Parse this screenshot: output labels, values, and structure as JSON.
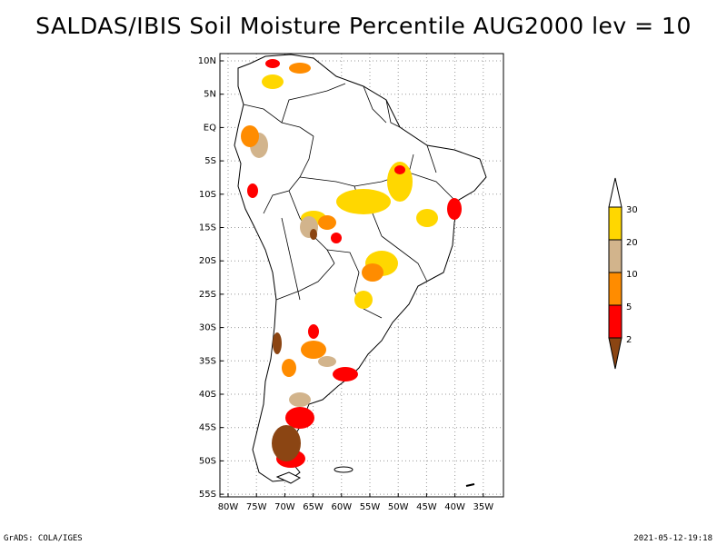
{
  "title": "SALDAS/IBIS Soil Moisture Percentile AUG2000 lev = 10",
  "map": {
    "lat_ticks": [
      "10N",
      "5N",
      "EQ",
      "5S",
      "10S",
      "15S",
      "20S",
      "25S",
      "30S",
      "35S",
      "40S",
      "45S",
      "50S",
      "55S"
    ],
    "lon_ticks": [
      "80W",
      "75W",
      "70W",
      "65W",
      "60W",
      "55W",
      "50W",
      "45W",
      "40W",
      "35W"
    ],
    "lat_range": [
      -56,
      12
    ],
    "lon_range": [
      -81,
      -31
    ]
  },
  "legend": {
    "labels": [
      "2",
      "5",
      "10",
      "20",
      "30"
    ],
    "colors": {
      "lt2": "#8b4513",
      "2to5": "#ff0000",
      "5to10": "#ff8c00",
      "10to20": "#d2b48c",
      "20to30": "#ffd700",
      "gt30": "#ffffff"
    }
  },
  "footer": {
    "left": "GrADS: COLA/IGES",
    "right": "2021-05-12-19:18"
  }
}
